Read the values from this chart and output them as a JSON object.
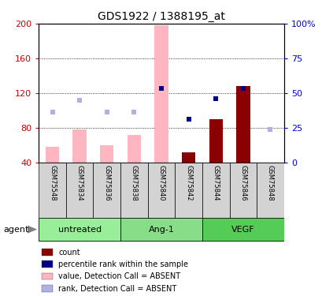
{
  "title": "GDS1922 / 1388195_at",
  "samples": [
    "GSM75548",
    "GSM75834",
    "GSM75836",
    "GSM75838",
    "GSM75840",
    "GSM75842",
    "GSM75844",
    "GSM75846",
    "GSM75848"
  ],
  "groups_data": [
    {
      "label": "untreated",
      "start": 0,
      "end": 2,
      "color": "#99ee99"
    },
    {
      "label": "Ang-1",
      "start": 3,
      "end": 5,
      "color": "#88dd88"
    },
    {
      "label": "VEGF",
      "start": 6,
      "end": 8,
      "color": "#55cc55"
    }
  ],
  "bar_values": [
    58,
    78,
    60,
    72,
    198,
    52,
    90,
    128,
    null
  ],
  "bar_absent": [
    true,
    true,
    true,
    true,
    true,
    false,
    false,
    false,
    false
  ],
  "rank_values": [
    98,
    112,
    98,
    98,
    126,
    90,
    114,
    126,
    78
  ],
  "rank_absent": [
    true,
    true,
    true,
    true,
    false,
    false,
    false,
    false,
    true
  ],
  "ylim_left": [
    40,
    200
  ],
  "ylim_right": [
    0,
    100
  ],
  "yticks_left": [
    40,
    80,
    120,
    160,
    200
  ],
  "yticks_right": [
    0,
    25,
    50,
    75,
    100
  ],
  "bar_color_absent": "#ffb6c1",
  "bar_color_present": "#8b0000",
  "rank_color_absent": "#b0b0e8",
  "rank_color_present": "#00008b",
  "bg_color": "#ffffff",
  "plot_bg": "#ffffff",
  "left_tick_color": "#cc0000",
  "right_tick_color": "#0000cc",
  "legend": [
    {
      "color": "#8b0000",
      "label": "count"
    },
    {
      "color": "#00008b",
      "label": "percentile rank within the sample"
    },
    {
      "color": "#ffb6c1",
      "label": "value, Detection Call = ABSENT"
    },
    {
      "color": "#b0b0e8",
      "label": "rank, Detection Call = ABSENT"
    }
  ],
  "agent_label": "agent",
  "bar_width": 0.5,
  "name_box_color": "#d3d3d3",
  "sample_fontsize": 6.0,
  "title_fontsize": 10
}
